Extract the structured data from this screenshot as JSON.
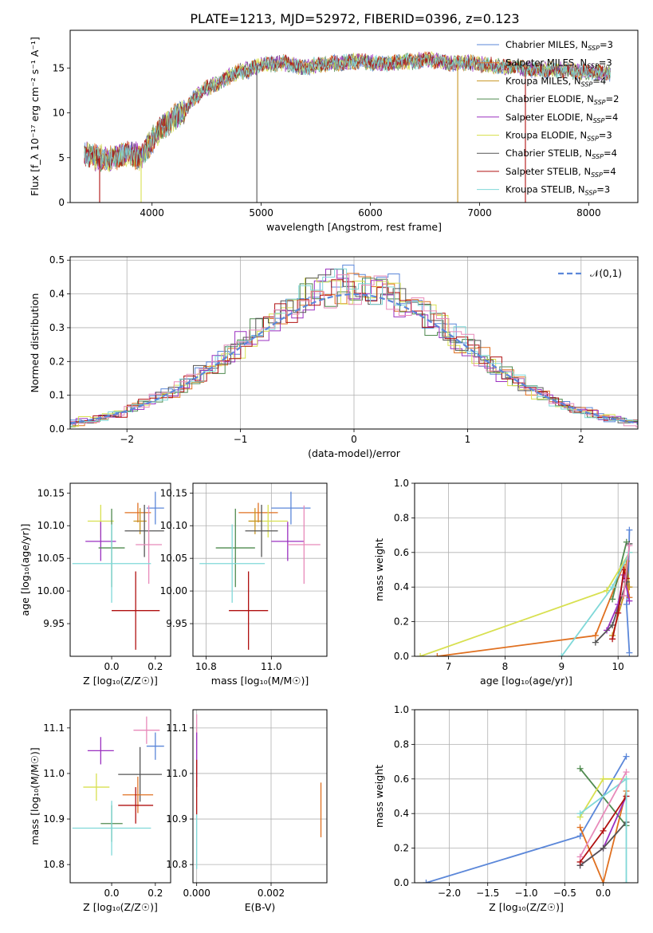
{
  "figure": {
    "title": "PLATE=1213, MJD=52972, FIBERID=0396, z=0.123"
  },
  "chart_data": [
    {
      "id": "spectrum",
      "type": "line",
      "xlabel": "wavelength [Angstrom, rest frame]",
      "ylabel": "Flux [f_λ 10⁻¹⁷ erg cm⁻² s⁻¹ A⁻¹]",
      "xlim": [
        3250,
        8450
      ],
      "ylim": [
        0,
        19.2
      ],
      "xticks": [
        4000,
        5000,
        6000,
        7000,
        8000
      ],
      "yticks": [
        0,
        5,
        10,
        15
      ],
      "grid": false,
      "legend_placement": "top-right",
      "shape": {
        "x": [
          3380,
          3500,
          3600,
          3700,
          3800,
          3900,
          4000,
          4100,
          4200,
          4300,
          4400,
          4500,
          4600,
          4700,
          4800,
          4900,
          5000,
          5100,
          5200,
          5300,
          5400,
          5500,
          5600,
          5700,
          5800,
          5900,
          6000,
          6100,
          6200,
          6300,
          6400,
          6500,
          6600,
          6700,
          6800,
          6900,
          7000,
          7100,
          7200,
          7300,
          7400,
          7500,
          7600,
          7700,
          7800,
          7900,
          8000,
          8100,
          8200
        ],
        "y": [
          5.5,
          5.0,
          4.8,
          5.2,
          5.5,
          5.0,
          7.0,
          8.5,
          9.5,
          10.2,
          11.8,
          12.8,
          13.2,
          14.0,
          14.6,
          14.8,
          15.4,
          15.4,
          15.6,
          15.3,
          15.0,
          15.3,
          15.4,
          15.6,
          15.6,
          15.8,
          15.6,
          15.5,
          15.5,
          15.8,
          15.7,
          16.0,
          15.8,
          15.6,
          15.5,
          15.6,
          15.4,
          15.3,
          15.2,
          15.2,
          15.0,
          14.8,
          14.7,
          14.8,
          14.7,
          14.6,
          14.6,
          14.5,
          14.4
        ]
      },
      "spikes": [
        {
          "x": 3520,
          "series": 7
        },
        {
          "x": 3900,
          "series": 5
        },
        {
          "x": 4960,
          "series": 6
        },
        {
          "x": 6800,
          "series": 2
        },
        {
          "x": 7420,
          "series": 7
        }
      ],
      "series": [
        {
          "name": "Chabrier MILES, N_SSP=3",
          "color": "#5b87d9"
        },
        {
          "name": "Salpeter MILES, N_SSP=3",
          "color": "#e07020"
        },
        {
          "name": "Kroupa MILES, N_SSP=4",
          "color": "#c89520"
        },
        {
          "name": "Chabrier ELODIE, N_SSP=2",
          "color": "#4f8a4f"
        },
        {
          "name": "Salpeter ELODIE, N_SSP=4",
          "color": "#9b30c0"
        },
        {
          "name": "Kroupa ELODIE, N_SSP=3",
          "color": "#d8e050"
        },
        {
          "name": "Chabrier STELIB, N_SSP=4",
          "color": "#555555"
        },
        {
          "name": "Salpeter STELIB, N_SSP=4",
          "color": "#b01010"
        },
        {
          "name": "Kroupa STELIB, N_SSP=3",
          "color": "#7fd8d8"
        }
      ]
    },
    {
      "id": "residuals",
      "type": "line",
      "xlabel": "(data-model)/error",
      "ylabel": "Normed distribution",
      "xlim": [
        -2.5,
        2.5
      ],
      "ylim": [
        0,
        0.51
      ],
      "xticks": [
        -2,
        -1,
        0,
        1,
        2
      ],
      "yticks": [
        0.0,
        0.1,
        0.2,
        0.3,
        0.4,
        0.5
      ],
      "grid": true,
      "legend_placement": "top-right",
      "legend": "𝒩(0,1)",
      "normal_curve_color": "#5b87d9",
      "step_colors": [
        "#5b87d9",
        "#e07020",
        "#4f8a4f",
        "#9b30c0",
        "#d8e050",
        "#555555",
        "#b01010",
        "#7fd8d8",
        "#e88aba"
      ]
    },
    {
      "id": "age_vs_Z",
      "type": "scatter",
      "xlabel": "Z [log₁₀(Z/Z☉)]",
      "ylabel": "age [log₁₀(age/yr)]",
      "xlim": [
        -0.19,
        0.27
      ],
      "ylim": [
        9.9,
        10.165
      ],
      "xticks": [
        0.0,
        0.2
      ],
      "yticks": [
        9.95,
        10.0,
        10.05,
        10.1,
        10.15
      ],
      "grid": false,
      "points": [
        {
          "x": 0.2,
          "y": 10.127,
          "xerr": 0.04,
          "yerr": 0.025,
          "color": "#5b87d9"
        },
        {
          "x": 0.12,
          "y": 10.12,
          "xerr": 0.06,
          "yerr": 0.015,
          "color": "#e07020"
        },
        {
          "x": -0.05,
          "y": 10.107,
          "xerr": 0.06,
          "yerr": 0.025,
          "color": "#d8e050"
        },
        {
          "x": 0.13,
          "y": 10.107,
          "xerr": 0.03,
          "yerr": 0.02,
          "color": "#c89520"
        },
        {
          "x": 0.15,
          "y": 10.092,
          "xerr": 0.09,
          "yerr": 0.04,
          "color": "#555555"
        },
        {
          "x": -0.05,
          "y": 10.076,
          "xerr": 0.07,
          "yerr": 0.03,
          "color": "#9b30c0"
        },
        {
          "x": 0.17,
          "y": 10.071,
          "xerr": 0.06,
          "yerr": 0.06,
          "color": "#e88aba"
        },
        {
          "x": 0.0,
          "y": 10.066,
          "xerr": 0.06,
          "yerr": 0.06,
          "color": "#4f8a4f"
        },
        {
          "x": 0.0,
          "y": 10.042,
          "xerr": 0.18,
          "yerr": 0.06,
          "color": "#7fd8d8"
        },
        {
          "x": 0.11,
          "y": 9.97,
          "xerr": 0.11,
          "yerr": 0.06,
          "color": "#b01010"
        }
      ]
    },
    {
      "id": "age_vs_mass",
      "type": "scatter",
      "xlabel": "mass [log₁₀(M/M☉)]",
      "ylabel": "",
      "xlim": [
        10.76,
        11.17
      ],
      "ylim": [
        9.9,
        10.165
      ],
      "xticks": [
        10.8,
        11.0
      ],
      "yticks": [
        9.95,
        10.0,
        10.05,
        10.1,
        10.15
      ],
      "grid": true,
      "points": [
        {
          "x": 11.06,
          "y": 10.127,
          "xerr": 0.06,
          "yerr": 0.025,
          "color": "#5b87d9"
        },
        {
          "x": 10.96,
          "y": 10.12,
          "xerr": 0.06,
          "yerr": 0.015,
          "color": "#e07020"
        },
        {
          "x": 10.99,
          "y": 10.107,
          "xerr": 0.06,
          "yerr": 0.025,
          "color": "#d8e050"
        },
        {
          "x": 10.95,
          "y": 10.107,
          "xerr": 0.02,
          "yerr": 0.02,
          "color": "#c89520"
        },
        {
          "x": 10.97,
          "y": 10.092,
          "xerr": 0.05,
          "yerr": 0.04,
          "color": "#555555"
        },
        {
          "x": 11.05,
          "y": 10.076,
          "xerr": 0.05,
          "yerr": 0.03,
          "color": "#9b30c0"
        },
        {
          "x": 11.1,
          "y": 10.071,
          "xerr": 0.05,
          "yerr": 0.06,
          "color": "#e88aba"
        },
        {
          "x": 10.89,
          "y": 10.066,
          "xerr": 0.06,
          "yerr": 0.06,
          "color": "#4f8a4f"
        },
        {
          "x": 10.88,
          "y": 10.042,
          "xerr": 0.1,
          "yerr": 0.06,
          "color": "#7fd8d8"
        },
        {
          "x": 10.93,
          "y": 9.97,
          "xerr": 0.06,
          "yerr": 0.06,
          "color": "#b01010"
        }
      ]
    },
    {
      "id": "weight_vs_age",
      "type": "line",
      "xlabel": "age [log₁₀(age/yr)]",
      "ylabel": "mass weight",
      "xlim": [
        6.4,
        10.35
      ],
      "ylim": [
        0,
        1.0
      ],
      "xticks": [
        7,
        8,
        9,
        10
      ],
      "yticks": [
        0.0,
        0.2,
        0.4,
        0.6,
        0.8,
        1.0
      ],
      "grid": true,
      "series": [
        {
          "color": "#5b87d9",
          "x": [
            10.2,
            10.18,
            10.15,
            10.2
          ],
          "y": [
            0.73,
            0.4,
            0.3,
            0.02
          ]
        },
        {
          "color": "#e07020",
          "x": [
            6.8,
            9.6,
            10.1,
            10.2
          ],
          "y": [
            0.0,
            0.12,
            0.53,
            0.34
          ]
        },
        {
          "color": "#c89520",
          "x": [
            9.9,
            10.1,
            10.15,
            10.2
          ],
          "y": [
            0.12,
            0.35,
            0.55,
            0.4
          ]
        },
        {
          "color": "#4f8a4f",
          "x": [
            9.9,
            10.15
          ],
          "y": [
            0.33,
            0.66
          ]
        },
        {
          "color": "#9b30c0",
          "x": [
            9.8,
            10.0,
            10.1,
            10.2
          ],
          "y": [
            0.15,
            0.3,
            0.47,
            0.32
          ]
        },
        {
          "color": "#d8e050",
          "x": [
            6.5,
            9.8,
            10.2
          ],
          "y": [
            0.0,
            0.38,
            0.6
          ]
        },
        {
          "color": "#555555",
          "x": [
            9.6,
            9.9,
            10.15,
            10.2
          ],
          "y": [
            0.08,
            0.18,
            0.43,
            0.65
          ]
        },
        {
          "color": "#b01010",
          "x": [
            9.9,
            10.0,
            10.1,
            10.15
          ],
          "y": [
            0.1,
            0.25,
            0.5,
            0.45
          ]
        },
        {
          "color": "#7fd8d8",
          "x": [
            9.0,
            9.9,
            10.2
          ],
          "y": [
            0.0,
            0.4,
            0.6
          ]
        },
        {
          "color": "#e88aba",
          "x": [
            10.1,
            10.2
          ],
          "y": [
            0.35,
            0.64
          ]
        }
      ]
    },
    {
      "id": "mass_vs_Z",
      "type": "scatter",
      "xlabel": "Z [log₁₀(Z/Z☉)]",
      "ylabel": "mass [log₁₀(M/M☉)]",
      "xlim": [
        -0.19,
        0.27
      ],
      "ylim": [
        10.76,
        11.14
      ],
      "xticks": [
        0.0,
        0.2
      ],
      "yticks": [
        10.8,
        10.9,
        11.0,
        11.1
      ],
      "grid": false,
      "points": [
        {
          "x": 0.2,
          "y": 11.06,
          "xerr": 0.04,
          "yerr": 0.03,
          "color": "#5b87d9"
        },
        {
          "x": 0.16,
          "y": 11.095,
          "xerr": 0.06,
          "yerr": 0.03,
          "color": "#e88aba"
        },
        {
          "x": -0.05,
          "y": 11.05,
          "xerr": 0.06,
          "yerr": 0.03,
          "color": "#9b30c0"
        },
        {
          "x": 0.13,
          "y": 10.998,
          "xerr": 0.1,
          "yerr": 0.06,
          "color": "#555555"
        },
        {
          "x": -0.07,
          "y": 10.97,
          "xerr": 0.06,
          "yerr": 0.03,
          "color": "#d8e050"
        },
        {
          "x": 0.12,
          "y": 10.953,
          "xerr": 0.07,
          "yerr": 0.04,
          "color": "#e07020"
        },
        {
          "x": 0.11,
          "y": 10.93,
          "xerr": 0.08,
          "yerr": 0.04,
          "color": "#b01010"
        },
        {
          "x": 0.0,
          "y": 10.89,
          "xerr": 0.05,
          "yerr": 0.04,
          "color": "#4f8a4f"
        },
        {
          "x": 0.0,
          "y": 10.88,
          "xerr": 0.18,
          "yerr": 0.06,
          "color": "#7fd8d8"
        }
      ]
    },
    {
      "id": "mass_vs_ebv",
      "type": "scatter",
      "xlabel": "E(B-V)",
      "ylabel": "",
      "xlim": [
        -0.0001,
        0.0035
      ],
      "ylim": [
        10.76,
        11.14
      ],
      "xticks": [
        0.0,
        0.002
      ],
      "yticks": [
        10.8,
        10.9,
        11.0,
        11.1
      ],
      "grid": true,
      "points": [
        {
          "x": 0.0,
          "y": 11.07,
          "xerr": 0,
          "yerr": 0.06,
          "color": "#e88aba"
        },
        {
          "x": 0.0,
          "y": 11.03,
          "xerr": 0,
          "yerr": 0.06,
          "color": "#9b30c0"
        },
        {
          "x": 0.0,
          "y": 10.97,
          "xerr": 0,
          "yerr": 0.06,
          "color": "#b01010"
        },
        {
          "x": 0.0,
          "y": 10.85,
          "xerr": 0,
          "yerr": 0.06,
          "color": "#7fd8d8"
        },
        {
          "x": 0.00334,
          "y": 10.92,
          "xerr": 0,
          "yerr": 0.06,
          "color": "#e07020"
        }
      ]
    },
    {
      "id": "weight_vs_Z",
      "type": "line",
      "xlabel": "Z [log₁₀(Z/Z☉)]",
      "ylabel": "mass weight",
      "xlim": [
        -2.45,
        0.45
      ],
      "ylim": [
        0,
        1.0
      ],
      "xticks": [
        -2.0,
        -1.5,
        -1.0,
        -0.5,
        0.0
      ],
      "yticks": [
        0.0,
        0.2,
        0.4,
        0.6,
        0.8,
        1.0
      ],
      "grid": true,
      "series": [
        {
          "color": "#5b87d9",
          "x": [
            -2.3,
            -0.3,
            0.3
          ],
          "y": [
            0.0,
            0.27,
            0.73
          ]
        },
        {
          "color": "#e07020",
          "x": [
            -0.3,
            0.0,
            0.3
          ],
          "y": [
            0.32,
            0.0,
            0.53
          ]
        },
        {
          "color": "#4f8a4f",
          "x": [
            -0.3,
            0.3
          ],
          "y": [
            0.66,
            0.33
          ]
        },
        {
          "color": "#9b30c0",
          "x": [
            -0.3,
            0.0,
            0.3
          ],
          "y": [
            0.1,
            0.2,
            0.5
          ]
        },
        {
          "color": "#d8e050",
          "x": [
            -0.3,
            0.0,
            0.3
          ],
          "y": [
            0.38,
            0.6,
            0.6
          ]
        },
        {
          "color": "#555555",
          "x": [
            -0.3,
            0.0,
            0.3
          ],
          "y": [
            0.1,
            0.2,
            0.35
          ]
        },
        {
          "color": "#b01010",
          "x": [
            -0.3,
            0.0,
            0.3
          ],
          "y": [
            0.12,
            0.3,
            0.5
          ]
        },
        {
          "color": "#7fd8d8",
          "x": [
            -0.3,
            0.3,
            0.3
          ],
          "y": [
            0.4,
            0.6,
            0.0
          ]
        },
        {
          "color": "#e88aba",
          "x": [
            -0.3,
            0.3
          ],
          "y": [
            0.15,
            0.64
          ]
        }
      ]
    }
  ]
}
